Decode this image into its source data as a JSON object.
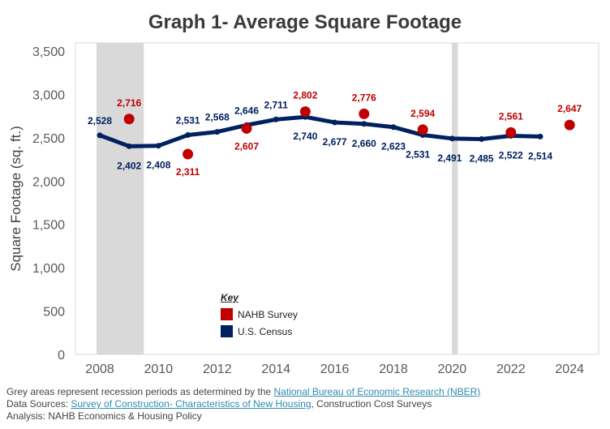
{
  "chart_data": {
    "type": "line",
    "title": "Graph 1- Average Square Footage",
    "ylabel": "Square Footage (sq. ft.)",
    "xlabel": "",
    "xlim": [
      2007,
      2025
    ],
    "ylim": [
      0,
      3500
    ],
    "yticks": [
      0,
      500,
      1000,
      1500,
      2000,
      2500,
      3000,
      3500
    ],
    "ytick_labels": [
      "0",
      "500",
      "1,000",
      "1,500",
      "2,000",
      "2,500",
      "3,000",
      "3,500"
    ],
    "xticks": [
      2008,
      2010,
      2012,
      2014,
      2016,
      2018,
      2020,
      2022,
      2024
    ],
    "xtick_labels": [
      "2008",
      "2010",
      "2012",
      "2014",
      "2016",
      "2018",
      "2020",
      "2022",
      "2024"
    ],
    "recession_periods": [
      [
        2008.0,
        2009.5
      ],
      [
        2020.1,
        2020.25
      ]
    ],
    "legend": {
      "title": "Key",
      "position": "bottom-center"
    },
    "grid": false,
    "series": [
      {
        "name": "U.S. Census",
        "style": "line-with-markers",
        "color": "#002060",
        "x": [
          2008,
          2009,
          2010,
          2011,
          2012,
          2013,
          2014,
          2015,
          2016,
          2017,
          2018,
          2019,
          2020,
          2021,
          2022,
          2023
        ],
        "values": [
          2528,
          2402,
          2408,
          2531,
          2568,
          2646,
          2711,
          2740,
          2677,
          2660,
          2623,
          2531,
          2491,
          2485,
          2522,
          2514
        ],
        "labels": [
          "2,528",
          "2,402",
          "2,408",
          "2,531",
          "2,568",
          "2,646",
          "2,711",
          "2,740",
          "2,677",
          "2,660",
          "2,623",
          "2,531",
          "2,491",
          "2,485",
          "2,522",
          "2,514"
        ]
      },
      {
        "name": "NAHB Survey",
        "style": "points",
        "color": "#c00000",
        "x": [
          2009,
          2011,
          2013,
          2015,
          2017,
          2019,
          2022,
          2024
        ],
        "values": [
          2716,
          2311,
          2607,
          2802,
          2776,
          2594,
          2561,
          2647
        ],
        "labels": [
          "2,716",
          "2,311",
          "2,607",
          "2,802",
          "2,776",
          "2,594",
          "2,561",
          "2,647"
        ]
      }
    ]
  },
  "footnotes": {
    "line1_prefix": "Grey areas represent recession periods as determined by the ",
    "line1_link": "National Bureau of Economic Research (NBER)",
    "line2_prefix": "Data Sources: ",
    "line2_link": "Survey of Construction- Characteristics of New Housing",
    "line2_suffix": ", Construction Cost Surveys",
    "line3": "Analysis: NAHB Economics & Housing Policy"
  },
  "colors": {
    "census": "#002060",
    "nahb": "#c00000",
    "recession": "#d9d9d9",
    "frame": "#d9d9d9"
  }
}
